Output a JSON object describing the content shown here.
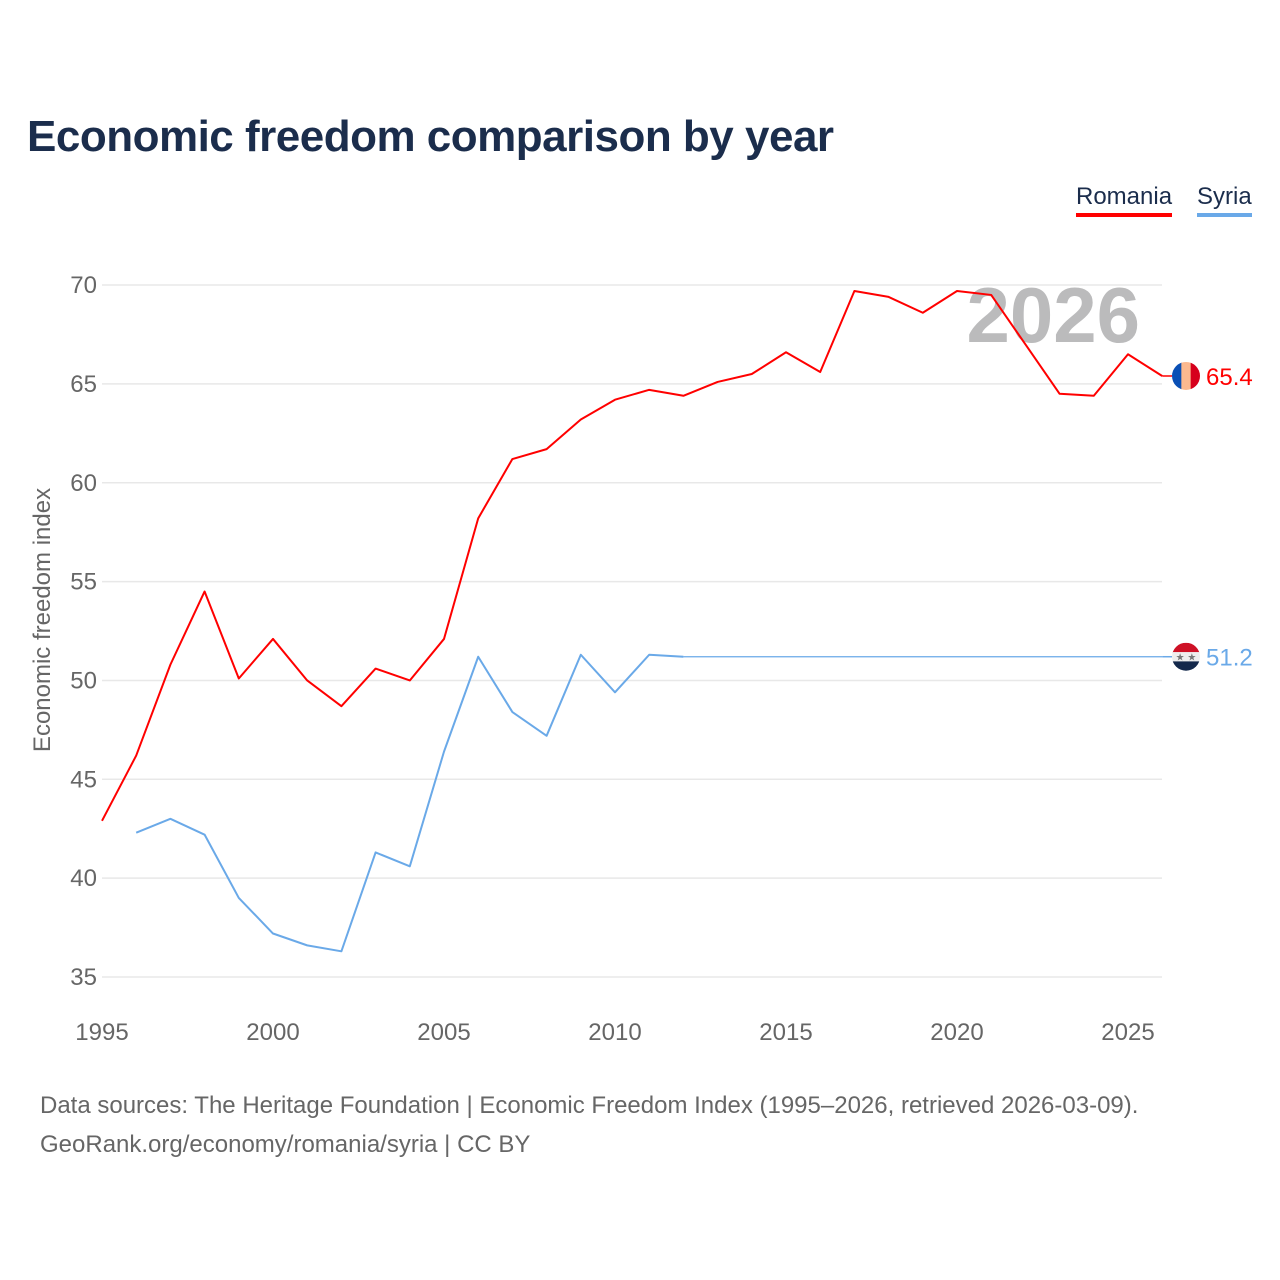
{
  "title": "Economic freedom comparison by year",
  "legend": [
    {
      "name": "Romania",
      "color": "#ff0000"
    },
    {
      "name": "Syria",
      "color": "#6aa9e8"
    }
  ],
  "footer": {
    "line1": "Data sources: The Heritage Foundation | Economic Freedom Index (1995–2026, retrieved 2026-03-09).",
    "line2": "GeoRank.org/economy/romania/syria | CC BY"
  },
  "chart_data": {
    "type": "line",
    "title": "Economic freedom comparison by year",
    "xlabel": "",
    "ylabel": "Economic freedom index",
    "xlim": [
      1995,
      2026
    ],
    "ylim": [
      35,
      70
    ],
    "xticks": [
      "1995",
      "2000",
      "2005",
      "2010",
      "2015",
      "2020",
      "2025"
    ],
    "yticks": [
      "35",
      "40",
      "45",
      "50",
      "55",
      "60",
      "65",
      "70"
    ],
    "grid": true,
    "legend_position": "top-right",
    "year_watermark": "2026",
    "series": [
      {
        "name": "Romania",
        "color": "#ff0000",
        "end_label": "65.4",
        "flag_colors": [
          "#0a4fb5",
          "#fcb98f",
          "#d6001c"
        ],
        "x": [
          1995,
          1996,
          1997,
          1998,
          1999,
          2000,
          2001,
          2002,
          2003,
          2004,
          2005,
          2006,
          2007,
          2008,
          2009,
          2010,
          2011,
          2012,
          2013,
          2014,
          2015,
          2016,
          2017,
          2018,
          2019,
          2020,
          2021,
          2022,
          2023,
          2024,
          2025,
          2026
        ],
        "values": [
          42.9,
          46.2,
          50.8,
          54.5,
          50.1,
          52.1,
          50.0,
          48.7,
          50.6,
          50.0,
          52.1,
          58.2,
          61.2,
          61.7,
          63.2,
          64.2,
          64.7,
          64.4,
          65.1,
          65.5,
          66.6,
          65.6,
          69.7,
          69.4,
          68.6,
          69.7,
          69.5,
          67.0,
          64.5,
          64.4,
          66.5,
          65.4
        ]
      },
      {
        "name": "Syria",
        "color": "#6aa9e8",
        "end_label": "51.2",
        "flag_colors": [
          "#ce1126",
          "#eeeeee",
          "#14284b"
        ],
        "x": [
          1996,
          1997,
          1998,
          1999,
          2000,
          2001,
          2002,
          2003,
          2004,
          2005,
          2006,
          2007,
          2008,
          2009,
          2010,
          2011,
          2012
        ],
        "values": [
          42.3,
          43.0,
          42.2,
          39.0,
          37.2,
          36.6,
          36.3,
          41.3,
          40.6,
          46.4,
          51.2,
          48.4,
          47.2,
          51.3,
          49.4,
          51.3,
          51.2
        ],
        "carried_forward_to": 2026
      }
    ]
  }
}
